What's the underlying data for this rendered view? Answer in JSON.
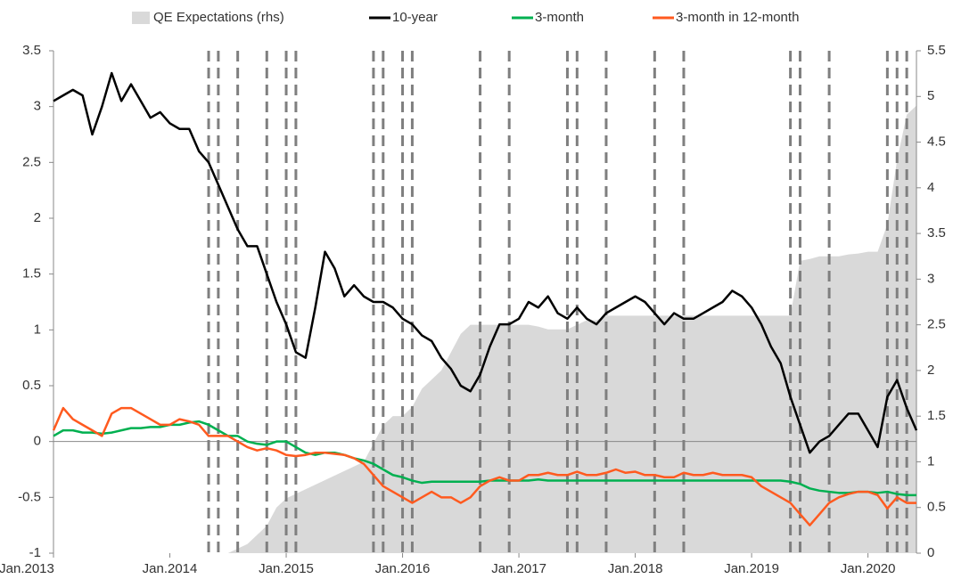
{
  "chart_data": {
    "type": "line",
    "x": [
      "2013-01",
      "2013-02",
      "2013-03",
      "2013-04",
      "2013-05",
      "2013-06",
      "2013-07",
      "2013-08",
      "2013-09",
      "2013-10",
      "2013-11",
      "2013-12",
      "2014-01",
      "2014-02",
      "2014-03",
      "2014-04",
      "2014-05",
      "2014-06",
      "2014-07",
      "2014-08",
      "2014-09",
      "2014-10",
      "2014-11",
      "2014-12",
      "2015-01",
      "2015-02",
      "2015-03",
      "2015-04",
      "2015-05",
      "2015-06",
      "2015-07",
      "2015-08",
      "2015-09",
      "2015-10",
      "2015-11",
      "2015-12",
      "2016-01",
      "2016-02",
      "2016-03",
      "2016-04",
      "2016-05",
      "2016-06",
      "2016-07",
      "2016-08",
      "2016-09",
      "2016-10",
      "2016-11",
      "2016-12",
      "2017-01",
      "2017-02",
      "2017-03",
      "2017-04",
      "2017-05",
      "2017-06",
      "2017-07",
      "2017-08",
      "2017-09",
      "2017-10",
      "2017-11",
      "2017-12",
      "2018-01",
      "2018-02",
      "2018-03",
      "2018-04",
      "2018-05",
      "2018-06",
      "2018-07",
      "2018-08",
      "2018-09",
      "2018-10",
      "2018-11",
      "2018-12",
      "2019-01",
      "2019-02",
      "2019-03",
      "2019-04",
      "2019-05",
      "2019-06",
      "2019-07",
      "2019-08",
      "2019-09",
      "2019-10",
      "2019-11",
      "2019-12",
      "2020-01",
      "2020-02",
      "2020-03",
      "2020-04",
      "2020-05",
      "2020-06"
    ],
    "series": [
      {
        "name": "QE Expectations (rhs)",
        "color": "#d9d9d9",
        "axis": "y2",
        "style": "area",
        "values": [
          0,
          0,
          0,
          0,
          0,
          0,
          0,
          0,
          0,
          0,
          0,
          0,
          0,
          0,
          0,
          0,
          0,
          0,
          0,
          0.05,
          0.1,
          0.2,
          0.3,
          0.5,
          0.6,
          0.65,
          0.7,
          0.75,
          0.8,
          0.85,
          0.9,
          0.95,
          1.0,
          1.2,
          1.4,
          1.5,
          1.5,
          1.6,
          1.8,
          1.9,
          2.0,
          2.2,
          2.4,
          2.5,
          2.5,
          2.5,
          2.5,
          2.5,
          2.5,
          2.5,
          2.48,
          2.45,
          2.45,
          2.45,
          2.5,
          2.55,
          2.55,
          2.6,
          2.6,
          2.6,
          2.6,
          2.6,
          2.6,
          2.6,
          2.6,
          2.6,
          2.6,
          2.6,
          2.6,
          2.6,
          2.6,
          2.6,
          2.6,
          2.6,
          2.6,
          2.6,
          2.6,
          3.2,
          3.22,
          3.25,
          3.25,
          3.25,
          3.27,
          3.28,
          3.3,
          3.3,
          3.6,
          4.3,
          4.8,
          4.9
        ]
      },
      {
        "name": "10-year",
        "color": "#000000",
        "values": [
          3.05,
          3.1,
          3.15,
          3.1,
          2.75,
          3.0,
          3.3,
          3.05,
          3.2,
          3.05,
          2.9,
          2.95,
          2.85,
          2.8,
          2.8,
          2.6,
          2.5,
          2.3,
          2.1,
          1.9,
          1.75,
          1.75,
          1.5,
          1.25,
          1.05,
          0.8,
          0.75,
          1.2,
          1.7,
          1.55,
          1.3,
          1.4,
          1.3,
          1.25,
          1.25,
          1.2,
          1.1,
          1.05,
          0.95,
          0.9,
          0.75,
          0.65,
          0.5,
          0.45,
          0.6,
          0.85,
          1.05,
          1.05,
          1.1,
          1.25,
          1.2,
          1.3,
          1.15,
          1.1,
          1.2,
          1.1,
          1.05,
          1.15,
          1.2,
          1.25,
          1.3,
          1.25,
          1.15,
          1.05,
          1.15,
          1.1,
          1.1,
          1.15,
          1.2,
          1.25,
          1.35,
          1.3,
          1.2,
          1.05,
          0.85,
          0.7,
          0.4,
          0.15,
          -0.1,
          0.0,
          0.05,
          0.15,
          0.25,
          0.25,
          0.1,
          -0.05,
          0.4,
          0.55,
          0.3,
          0.1
        ]
      },
      {
        "name": "3-month",
        "color": "#00b050",
        "values": [
          0.05,
          0.1,
          0.1,
          0.08,
          0.08,
          0.07,
          0.08,
          0.1,
          0.12,
          0.12,
          0.13,
          0.13,
          0.15,
          0.15,
          0.17,
          0.18,
          0.15,
          0.1,
          0.05,
          0.05,
          0.0,
          -0.02,
          -0.03,
          0.0,
          0.0,
          -0.05,
          -0.1,
          -0.12,
          -0.1,
          -0.1,
          -0.12,
          -0.15,
          -0.17,
          -0.2,
          -0.25,
          -0.3,
          -0.32,
          -0.35,
          -0.37,
          -0.36,
          -0.36,
          -0.36,
          -0.36,
          -0.36,
          -0.36,
          -0.35,
          -0.35,
          -0.35,
          -0.35,
          -0.35,
          -0.34,
          -0.35,
          -0.35,
          -0.35,
          -0.35,
          -0.35,
          -0.35,
          -0.35,
          -0.35,
          -0.35,
          -0.35,
          -0.35,
          -0.35,
          -0.35,
          -0.35,
          -0.35,
          -0.35,
          -0.35,
          -0.35,
          -0.35,
          -0.35,
          -0.35,
          -0.35,
          -0.35,
          -0.35,
          -0.35,
          -0.36,
          -0.38,
          -0.42,
          -0.44,
          -0.45,
          -0.46,
          -0.46,
          -0.45,
          -0.45,
          -0.46,
          -0.45,
          -0.47,
          -0.48,
          -0.48
        ]
      },
      {
        "name": "3-month in 12-month",
        "color": "#ff5a1f",
        "values": [
          0.1,
          0.3,
          0.2,
          0.15,
          0.1,
          0.05,
          0.25,
          0.3,
          0.3,
          0.25,
          0.2,
          0.15,
          0.15,
          0.2,
          0.18,
          0.15,
          0.05,
          0.05,
          0.05,
          0.0,
          -0.05,
          -0.08,
          -0.06,
          -0.08,
          -0.12,
          -0.13,
          -0.12,
          -0.1,
          -0.1,
          -0.11,
          -0.12,
          -0.15,
          -0.2,
          -0.3,
          -0.4,
          -0.45,
          -0.5,
          -0.55,
          -0.5,
          -0.45,
          -0.5,
          -0.5,
          -0.55,
          -0.5,
          -0.4,
          -0.35,
          -0.32,
          -0.35,
          -0.35,
          -0.3,
          -0.3,
          -0.28,
          -0.3,
          -0.3,
          -0.27,
          -0.3,
          -0.3,
          -0.28,
          -0.25,
          -0.28,
          -0.27,
          -0.3,
          -0.3,
          -0.32,
          -0.32,
          -0.28,
          -0.3,
          -0.3,
          -0.28,
          -0.3,
          -0.3,
          -0.3,
          -0.32,
          -0.4,
          -0.45,
          -0.5,
          -0.55,
          -0.65,
          -0.75,
          -0.65,
          -0.55,
          -0.5,
          -0.47,
          -0.45,
          -0.45,
          -0.48,
          -0.6,
          -0.5,
          -0.55,
          -0.55
        ]
      }
    ],
    "events": [
      "2014-05",
      "2014-06",
      "2014-08",
      "2014-11",
      "2015-01",
      "2015-02",
      "2015-10",
      "2015-11",
      "2016-01",
      "2016-02",
      "2016-09",
      "2016-12",
      "2017-06",
      "2017-07",
      "2017-10",
      "2018-03",
      "2018-06",
      "2019-05",
      "2019-06",
      "2019-09",
      "2020-03",
      "2020-04",
      "2020-05"
    ],
    "xlim": [
      "2013-01",
      "2020-06"
    ],
    "xticks": [
      {
        "value": "2013-01",
        "label": "Jan.2013"
      },
      {
        "value": "2014-01",
        "label": "Jan.2014"
      },
      {
        "value": "2015-01",
        "label": "Jan.2015"
      },
      {
        "value": "2016-01",
        "label": "Jan.2016"
      },
      {
        "value": "2017-01",
        "label": "Jan.2017"
      },
      {
        "value": "2018-01",
        "label": "Jan.2018"
      },
      {
        "value": "2019-01",
        "label": "Jan.2019"
      },
      {
        "value": "2020-01",
        "label": "Jan.2020"
      }
    ],
    "ylim": [
      -1,
      3.5
    ],
    "yticks": [
      -1,
      -0.5,
      0,
      0.5,
      1,
      1.5,
      2,
      2.5,
      3,
      3.5
    ],
    "y2lim": [
      0,
      5.5
    ],
    "y2ticks": [
      0,
      0.5,
      1,
      1.5,
      2,
      2.5,
      3,
      3.5,
      4,
      4.5,
      5,
      5.5
    ],
    "legend": "top"
  }
}
